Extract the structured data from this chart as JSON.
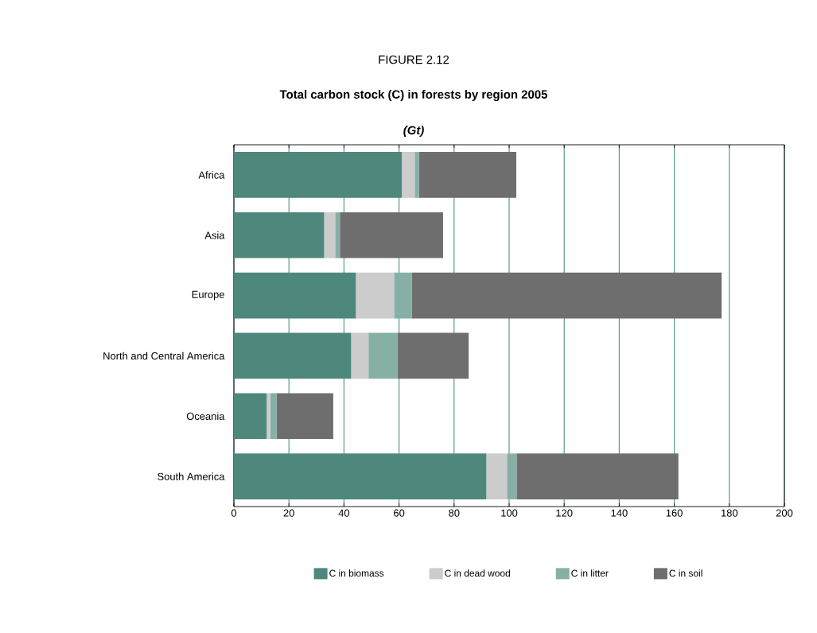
{
  "chart_data": {
    "type": "bar",
    "orientation": "horizontal",
    "stacked": true,
    "title": "Total carbon stock (C) in forests by region 2005",
    "subtitle": "(Gt)",
    "annotations": [
      "FIGURE 2.12"
    ],
    "categories": [
      "Africa",
      "Asia",
      "Europe",
      "North and Central America",
      "Oceania",
      "South America"
    ],
    "series": [
      {
        "name": "C in biomass",
        "color": "#4e877b",
        "values": [
          61.0,
          32.8,
          44.3,
          42.6,
          11.9,
          91.7
        ]
      },
      {
        "name": "C in dead wood",
        "color": "#cccccc",
        "values": [
          4.7,
          4.0,
          13.9,
          6.3,
          1.3,
          7.5
        ]
      },
      {
        "name": "C in litter",
        "color": "#86b0a6",
        "values": [
          1.6,
          1.7,
          6.4,
          10.5,
          2.3,
          3.5
        ]
      },
      {
        "name": "C in soil",
        "color": "#6e6e6e",
        "values": [
          35.3,
          37.5,
          112.6,
          25.9,
          20.6,
          58.8
        ]
      }
    ],
    "xlim": [
      0,
      200
    ],
    "xticks": [
      0,
      20,
      40,
      60,
      80,
      100,
      120,
      140,
      160,
      180,
      200
    ],
    "grid": "x",
    "legend": "bottom"
  }
}
